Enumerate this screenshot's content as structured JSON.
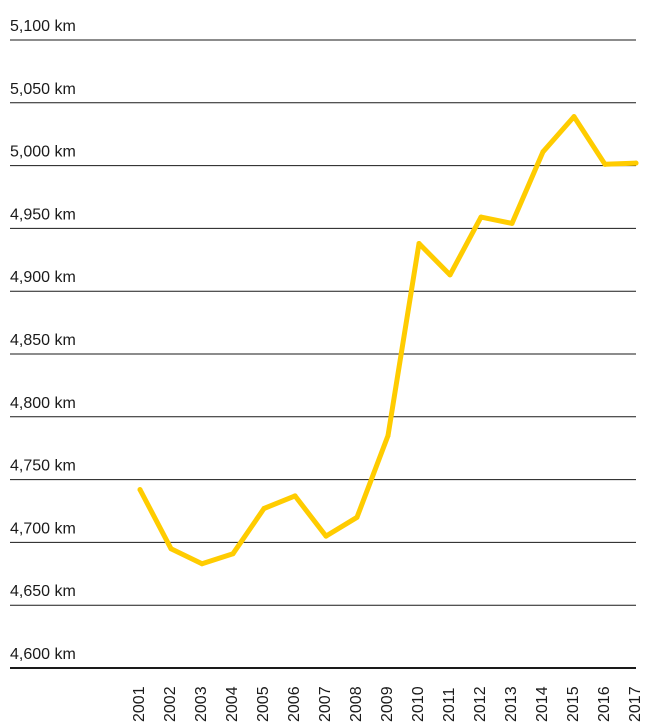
{
  "chart_data": {
    "type": "line",
    "title": "",
    "xlabel": "",
    "ylabel": "",
    "x": [
      "2001",
      "2002",
      "2003",
      "2004",
      "2005",
      "2006",
      "2007",
      "2008",
      "2009",
      "2010",
      "2011",
      "2012",
      "2013",
      "2014",
      "2015",
      "2016",
      "2017"
    ],
    "series": [
      {
        "values": [
          4742,
          4695,
          4683,
          4691,
          4727,
          4737,
          4705,
          4720,
          4785,
          4938,
          4913,
          4959,
          4954,
          5011,
          5039,
          5001,
          5002
        ]
      }
    ],
    "yticks": [
      {
        "value": 5100,
        "label": "5,100 km"
      },
      {
        "value": 5050,
        "label": "5,050 km"
      },
      {
        "value": 5000,
        "label": "5,000 km"
      },
      {
        "value": 4950,
        "label": "4,950 km"
      },
      {
        "value": 4900,
        "label": "4,900 km"
      },
      {
        "value": 4850,
        "label": "4,850 km"
      },
      {
        "value": 4800,
        "label": "4,800 km"
      },
      {
        "value": 4750,
        "label": "4,750 km"
      },
      {
        "value": 4700,
        "label": "4,700 km"
      },
      {
        "value": 4650,
        "label": "4,650 km"
      },
      {
        "value": 4600,
        "label": "4,600 km"
      }
    ],
    "ylim": [
      4600,
      5100
    ],
    "grid": true,
    "legend": "none",
    "colors": {
      "line": "#FFCC00",
      "grid": "#1a1a1a",
      "text": "#1a1a1a"
    }
  }
}
